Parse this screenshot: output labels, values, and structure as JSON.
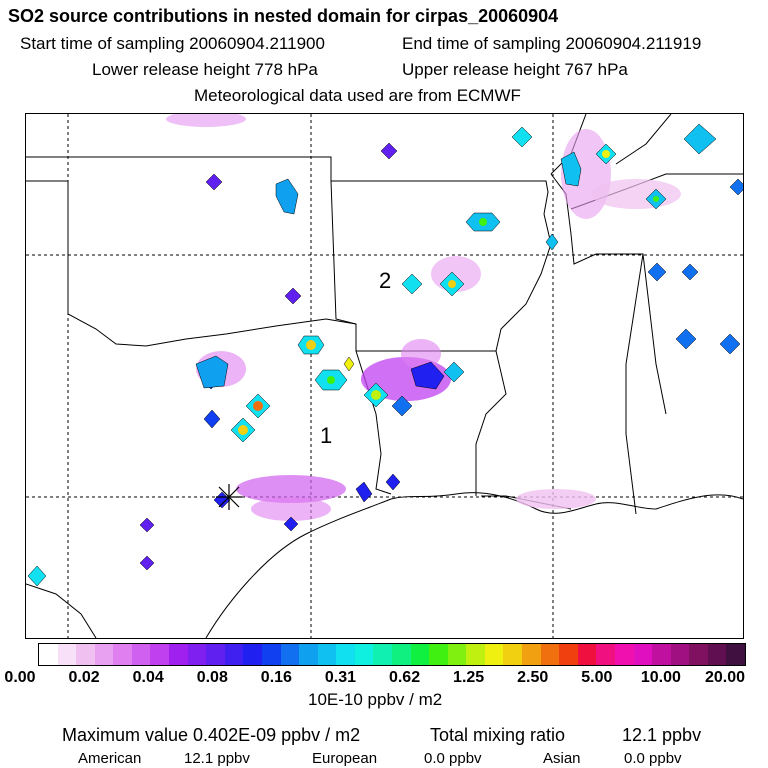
{
  "header": {
    "title": "SO2 source contributions in nested domain for cirpas_20060904",
    "start": "Start time of sampling 20060904.211900",
    "end": "End time of sampling 20060904.211919",
    "lower": "Lower release height  778 hPa",
    "upper": "Upper release height  767 hPa",
    "met": "Meteorological data used are from ECMWF"
  },
  "map": {
    "labels": [
      "1",
      "2"
    ]
  },
  "colorbar": {
    "colors": [
      "#ffffff",
      "#f8e0f8",
      "#f0c0f0",
      "#e8a0f0",
      "#e080f0",
      "#d060f0",
      "#c040f0",
      "#a020f0",
      "#8020f0",
      "#6020f0",
      "#4020f0",
      "#2020f0",
      "#1040f0",
      "#1070f0",
      "#10a0f0",
      "#10c0f0",
      "#10e0f0",
      "#10f0e0",
      "#10f0b0",
      "#10f080",
      "#10f040",
      "#40f010",
      "#80f010",
      "#c0f010",
      "#f0f010",
      "#f0d010",
      "#f0a010",
      "#f07010",
      "#f04010",
      "#f01040",
      "#f01080",
      "#f010b0",
      "#e010c0",
      "#c010a0",
      "#a01080",
      "#801060",
      "#601050",
      "#401040"
    ],
    "ticks": [
      "0.00",
      "0.02",
      "0.04",
      "0.08",
      "0.16",
      "0.31",
      "0.62",
      "1.25",
      "2.50",
      "5.00",
      "10.00",
      "20.00"
    ],
    "units": "10E-10 ppbv / m2"
  },
  "footer": {
    "max": "Maximum value  0.402E-09 ppbv / m2",
    "total_label": "Total mixing ratio",
    "total_value": "12.1 ppbv",
    "american_label": "American",
    "american_value": "12.1 ppbv",
    "european_label": "European",
    "european_value": "0.0 ppbv",
    "asian_label": "Asian",
    "asian_value": "0.0 ppbv"
  }
}
